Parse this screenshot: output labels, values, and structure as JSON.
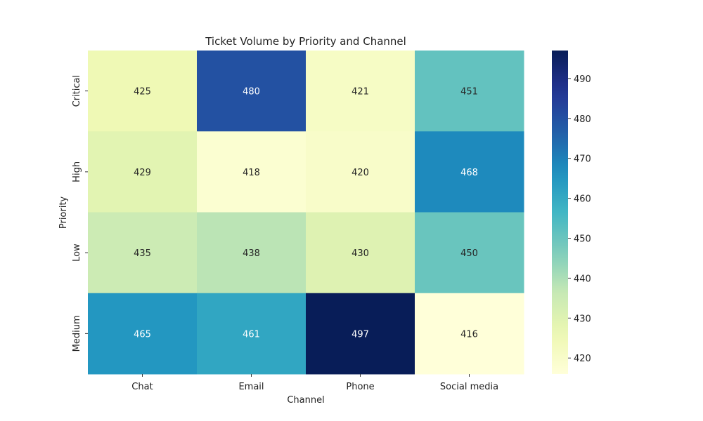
{
  "chart_data": {
    "type": "heatmap",
    "title": "Ticket Volume by Priority and Channel",
    "xlabel": "Channel",
    "ylabel": "Priority",
    "x_categories": [
      "Chat",
      "Email",
      "Phone",
      "Social media"
    ],
    "y_categories": [
      "Critical",
      "High",
      "Low",
      "Medium"
    ],
    "values": [
      [
        425,
        480,
        421,
        451
      ],
      [
        429,
        418,
        420,
        468
      ],
      [
        435,
        438,
        430,
        450
      ],
      [
        465,
        461,
        497,
        416
      ]
    ],
    "colorbar": {
      "range": [
        416,
        497
      ],
      "ticks": [
        420,
        430,
        440,
        450,
        460,
        470,
        480,
        490
      ],
      "colormap": "YlGnBu"
    },
    "annotations": true,
    "grid": false
  }
}
